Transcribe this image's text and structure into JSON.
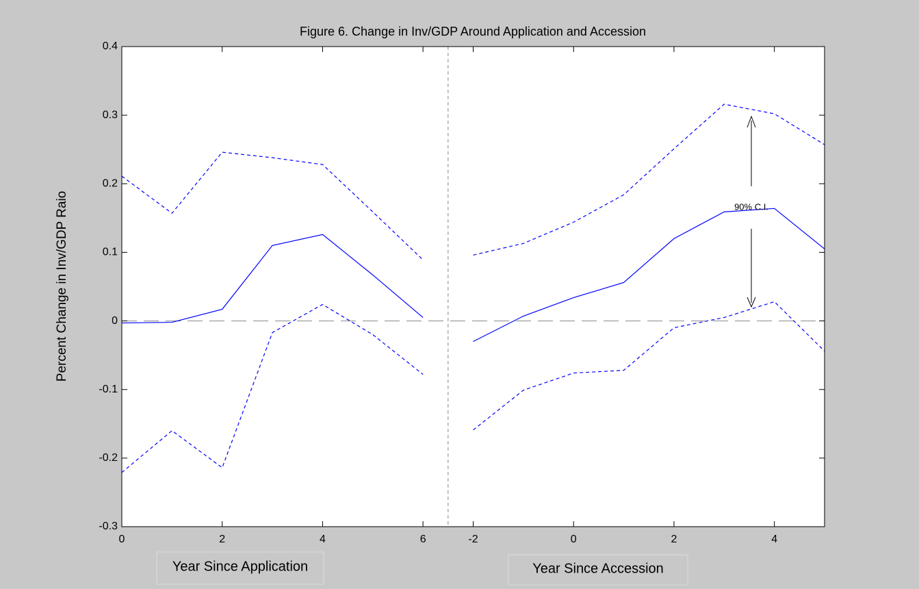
{
  "chart_data": {
    "type": "line",
    "title": "Figure 6. Change in Inv/GDP Around Application and Accession",
    "y_label": "Percent Change in Inv/GDP Raio",
    "x_labels": [
      "Year Since Application",
      "Year Since Accession"
    ],
    "annotation": "90% C.I.",
    "x": [
      0,
      1,
      2,
      3,
      4,
      5,
      6,
      7,
      8,
      9,
      10,
      11,
      12,
      13,
      14
    ],
    "series": [
      {
        "color": "#0000ff",
        "style": "solid",
        "values": [
          -0.003,
          -0.002,
          0.017,
          0.11,
          0.126,
          0.067,
          0.005,
          null,
          null,
          null,
          null,
          null,
          null,
          null,
          null
        ]
      },
      {
        "color": "#0000ff",
        "style": "dashed",
        "values": [
          0.211,
          0.157,
          0.246,
          0.238,
          0.228,
          0.159,
          0.089,
          null,
          null,
          null,
          null,
          null,
          null,
          null,
          null
        ]
      },
      {
        "color": "#0000ff",
        "style": "dashed",
        "values": [
          -0.221,
          -0.16,
          -0.214,
          -0.017,
          0.024,
          -0.02,
          -0.078,
          null,
          null,
          null,
          null,
          null,
          null,
          null,
          null
        ]
      },
      {
        "color": "#0000ff",
        "style": "solid",
        "values": [
          null,
          null,
          null,
          null,
          null,
          null,
          null,
          -0.03,
          0.007,
          0.034,
          0.056,
          0.12,
          0.159,
          0.164,
          0.105
        ]
      },
      {
        "color": "#0000ff",
        "style": "dashed",
        "values": [
          null,
          null,
          null,
          null,
          null,
          null,
          null,
          0.096,
          0.113,
          0.144,
          0.184,
          0.251,
          0.316,
          0.302,
          0.257
        ]
      },
      {
        "color": "#0000ff",
        "style": "dashed",
        "values": [
          null,
          null,
          null,
          null,
          null,
          null,
          null,
          -0.159,
          -0.101,
          -0.076,
          -0.072,
          -0.01,
          0.005,
          0.028,
          -0.044
        ]
      }
    ],
    "xlim": [
      0,
      14
    ],
    "xticks": [
      0,
      2,
      4,
      6,
      {
        "value": 7,
        "label": "-2"
      },
      {
        "value": 9,
        "label": "0"
      },
      {
        "value": 11,
        "label": "2"
      },
      {
        "value": 13,
        "label": "4"
      }
    ],
    "ylim": [
      -0.3,
      0.4
    ],
    "yticks": [
      -0.3,
      -0.2,
      -0.1,
      0,
      0.1,
      0.2,
      0.3,
      0.4
    ],
    "hline": 0,
    "vline": 6.5,
    "grid": false
  }
}
